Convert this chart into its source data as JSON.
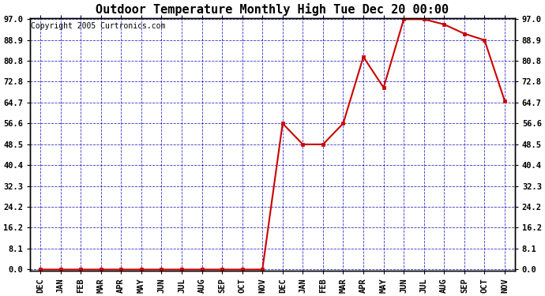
{
  "title": "Outdoor Temperature Monthly High Tue Dec 20 00:00",
  "copyright": "Copyright 2005 Curtronics.com",
  "x_labels": [
    "DEC",
    "JAN",
    "FEB",
    "MAR",
    "APR",
    "MAY",
    "JUN",
    "JUL",
    "AUG",
    "SEP",
    "OCT",
    "NOV",
    "DEC",
    "JAN",
    "FEB",
    "MAR",
    "APR",
    "MAY",
    "JUN",
    "JUL",
    "AUG",
    "SEP",
    "OCT",
    "NOV"
  ],
  "y_values": [
    0.0,
    0.0,
    0.0,
    0.0,
    0.0,
    0.0,
    0.0,
    0.0,
    0.0,
    0.0,
    0.0,
    0.0,
    56.6,
    48.5,
    48.5,
    56.6,
    82.4,
    70.5,
    97.0,
    97.0,
    95.0,
    91.4,
    88.9,
    65.3
  ],
  "yticks": [
    0.0,
    8.1,
    16.2,
    24.2,
    32.3,
    40.4,
    48.5,
    56.6,
    64.7,
    72.8,
    80.8,
    88.9,
    97.0
  ],
  "ymin": 0.0,
  "ymax": 97.0,
  "line_color": "#cc0000",
  "marker_color": "#cc0000",
  "grid_color": "#0000bb",
  "bg_color": "#ffffff",
  "fig_bg_color": "#ffffff",
  "border_color": "#000000",
  "title_fontsize": 11,
  "copyright_fontsize": 7,
  "tick_fontsize": 7.5,
  "marker_size": 3,
  "line_width": 1.5
}
